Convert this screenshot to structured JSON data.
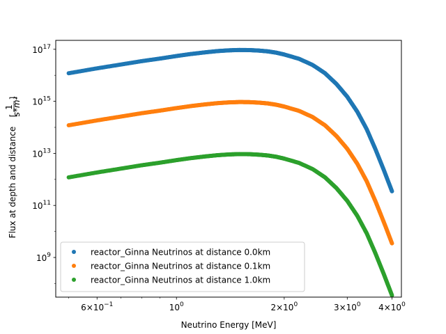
{
  "chart_data": {
    "type": "scatter",
    "x_scale": "log",
    "y_scale": "log",
    "xlabel": "Neutrino Energy [MeV]",
    "ylabel": {
      "prefix": "Flux at depth and distance ",
      "fraction_numerator": "1",
      "fraction_denominator": "s*m²"
    },
    "xlim": [
      0.46,
      4.25
    ],
    "ylim": [
      30000000.0,
      2.2e+17
    ],
    "grid": false,
    "legend_position": "lower-left",
    "x_ticks": [
      {
        "value": 0.6,
        "base": "6×10",
        "exp": "−1"
      },
      {
        "value": 1.0,
        "base": "10",
        "exp": "0"
      },
      {
        "value": 2.0,
        "base": "2×10",
        "exp": "0"
      },
      {
        "value": 3.0,
        "base": "3×10",
        "exp": "0"
      },
      {
        "value": 4.0,
        "base": "4×10",
        "exp": "0"
      }
    ],
    "y_ticks": [
      {
        "value": 1000000000.0,
        "base": "10",
        "exp": "9"
      },
      {
        "value": 100000000000.0,
        "base": "10",
        "exp": "11"
      },
      {
        "value": 10000000000000.0,
        "base": "10",
        "exp": "13"
      },
      {
        "value": 1000000000000000.0,
        "base": "10",
        "exp": "15"
      },
      {
        "value": 1e+17,
        "base": "10",
        "exp": "17"
      }
    ],
    "series": [
      {
        "name": "reactor_Ginna Neutrinos at distance 0.0km",
        "color": "#1f77b4",
        "x": [
          0.5,
          0.6,
          0.7,
          0.8,
          0.9,
          1.0,
          1.1,
          1.2,
          1.3,
          1.4,
          1.5,
          1.6,
          1.7,
          1.8,
          1.9,
          2.0,
          2.2,
          2.4,
          2.6,
          2.8,
          3.0,
          3.2,
          3.4,
          3.6,
          3.8,
          4.0
        ],
        "y": [
          1.2e+16,
          1.85e+16,
          2.6e+16,
          3.5e+16,
          4.4e+16,
          5.5e+16,
          6.6e+16,
          7.6e+16,
          8.5e+16,
          9.1e+16,
          9.4e+16,
          9.3e+16,
          8.9e+16,
          8.3e+16,
          7.4e+16,
          6.3e+16,
          4.3e+16,
          2.5e+16,
          1.2e+16,
          4600000000000000.0,
          1500000000000000.0,
          400000000000000.0,
          85000000000000.0,
          14000000000000.0,
          2200000000000.0,
          350000000000.0
        ]
      },
      {
        "name": "reactor_Ginna Neutrinos at distance 0.1km",
        "color": "#ff7f0e",
        "x": [
          0.5,
          0.6,
          0.7,
          0.8,
          0.9,
          1.0,
          1.1,
          1.2,
          1.3,
          1.4,
          1.5,
          1.6,
          1.7,
          1.8,
          1.9,
          2.0,
          2.2,
          2.4,
          2.6,
          2.8,
          3.0,
          3.2,
          3.4,
          3.6,
          3.8,
          4.0
        ],
        "y": [
          120000000000000.0,
          185000000000000.0,
          260000000000000.0,
          350000000000000.0,
          440000000000000.0,
          550000000000000.0,
          660000000000000.0,
          760000000000000.0,
          850000000000000.0,
          910000000000000.0,
          940000000000000.0,
          930000000000000.0,
          890000000000000.0,
          830000000000000.0,
          740000000000000.0,
          630000000000000.0,
          430000000000000.0,
          250000000000000.0,
          120000000000000.0,
          46000000000000.0,
          15000000000000.0,
          4000000000000.0,
          850000000000.0,
          140000000000.0,
          22000000000.0,
          3500000000.0
        ]
      },
      {
        "name": "reactor_Ginna Neutrinos at distance 1.0km",
        "color": "#2ca02c",
        "x": [
          0.5,
          0.6,
          0.7,
          0.8,
          0.9,
          1.0,
          1.1,
          1.2,
          1.3,
          1.4,
          1.5,
          1.6,
          1.7,
          1.8,
          1.9,
          2.0,
          2.2,
          2.4,
          2.6,
          2.8,
          3.0,
          3.2,
          3.4,
          3.6,
          3.8,
          4.0
        ],
        "y": [
          1200000000000.0,
          1850000000000.0,
          2600000000000.0,
          3500000000000.0,
          4400000000000.0,
          5500000000000.0,
          6600000000000.0,
          7600000000000.0,
          8500000000000.0,
          9100000000000.0,
          9400000000000.0,
          9300000000000.0,
          8900000000000.0,
          8300000000000.0,
          7400000000000.0,
          6300000000000.0,
          4300000000000.0,
          2500000000000.0,
          1200000000000.0,
          460000000000.0,
          150000000000.0,
          40000000000.0,
          8500000000.0,
          1400000000.0,
          220000000.0,
          35000000.0
        ]
      }
    ]
  }
}
